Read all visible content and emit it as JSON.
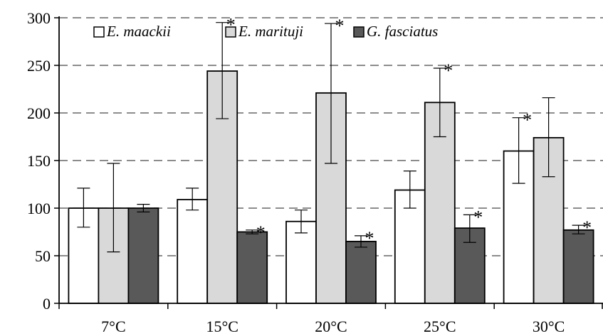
{
  "chart_data": {
    "type": "bar",
    "categories": [
      "7°C",
      "15°C",
      "20°C",
      "25°C",
      "30°C"
    ],
    "ylim": [
      0,
      300
    ],
    "yticks": [
      0,
      50,
      100,
      150,
      200,
      250,
      300
    ],
    "grid": "dashed horizontal",
    "legend_position": "top-left",
    "significance_marker": "*",
    "series": [
      {
        "name": "E. maackii",
        "color": "#ffffff",
        "values": [
          100,
          109,
          86,
          119,
          160
        ],
        "err_low": [
          80,
          98,
          74,
          100,
          126
        ],
        "err_high": [
          121,
          121,
          98,
          139,
          195
        ],
        "significant": [
          false,
          false,
          false,
          false,
          true
        ]
      },
      {
        "name": "E. marituji",
        "color": "#d9d9d9",
        "values": [
          100,
          244,
          221,
          211,
          174
        ],
        "err_low": [
          54,
          194,
          147,
          175,
          133
        ],
        "err_high": [
          147,
          295,
          294,
          247,
          216
        ],
        "significant": [
          false,
          true,
          true,
          true,
          false
        ]
      },
      {
        "name": "G. fasciatus",
        "color": "#595959",
        "values": [
          100,
          75,
          65,
          79,
          77
        ],
        "err_low": [
          96,
          73,
          59,
          64,
          73
        ],
        "err_high": [
          104,
          77,
          71,
          93,
          82
        ],
        "significant": [
          false,
          true,
          true,
          true,
          true
        ]
      }
    ]
  }
}
